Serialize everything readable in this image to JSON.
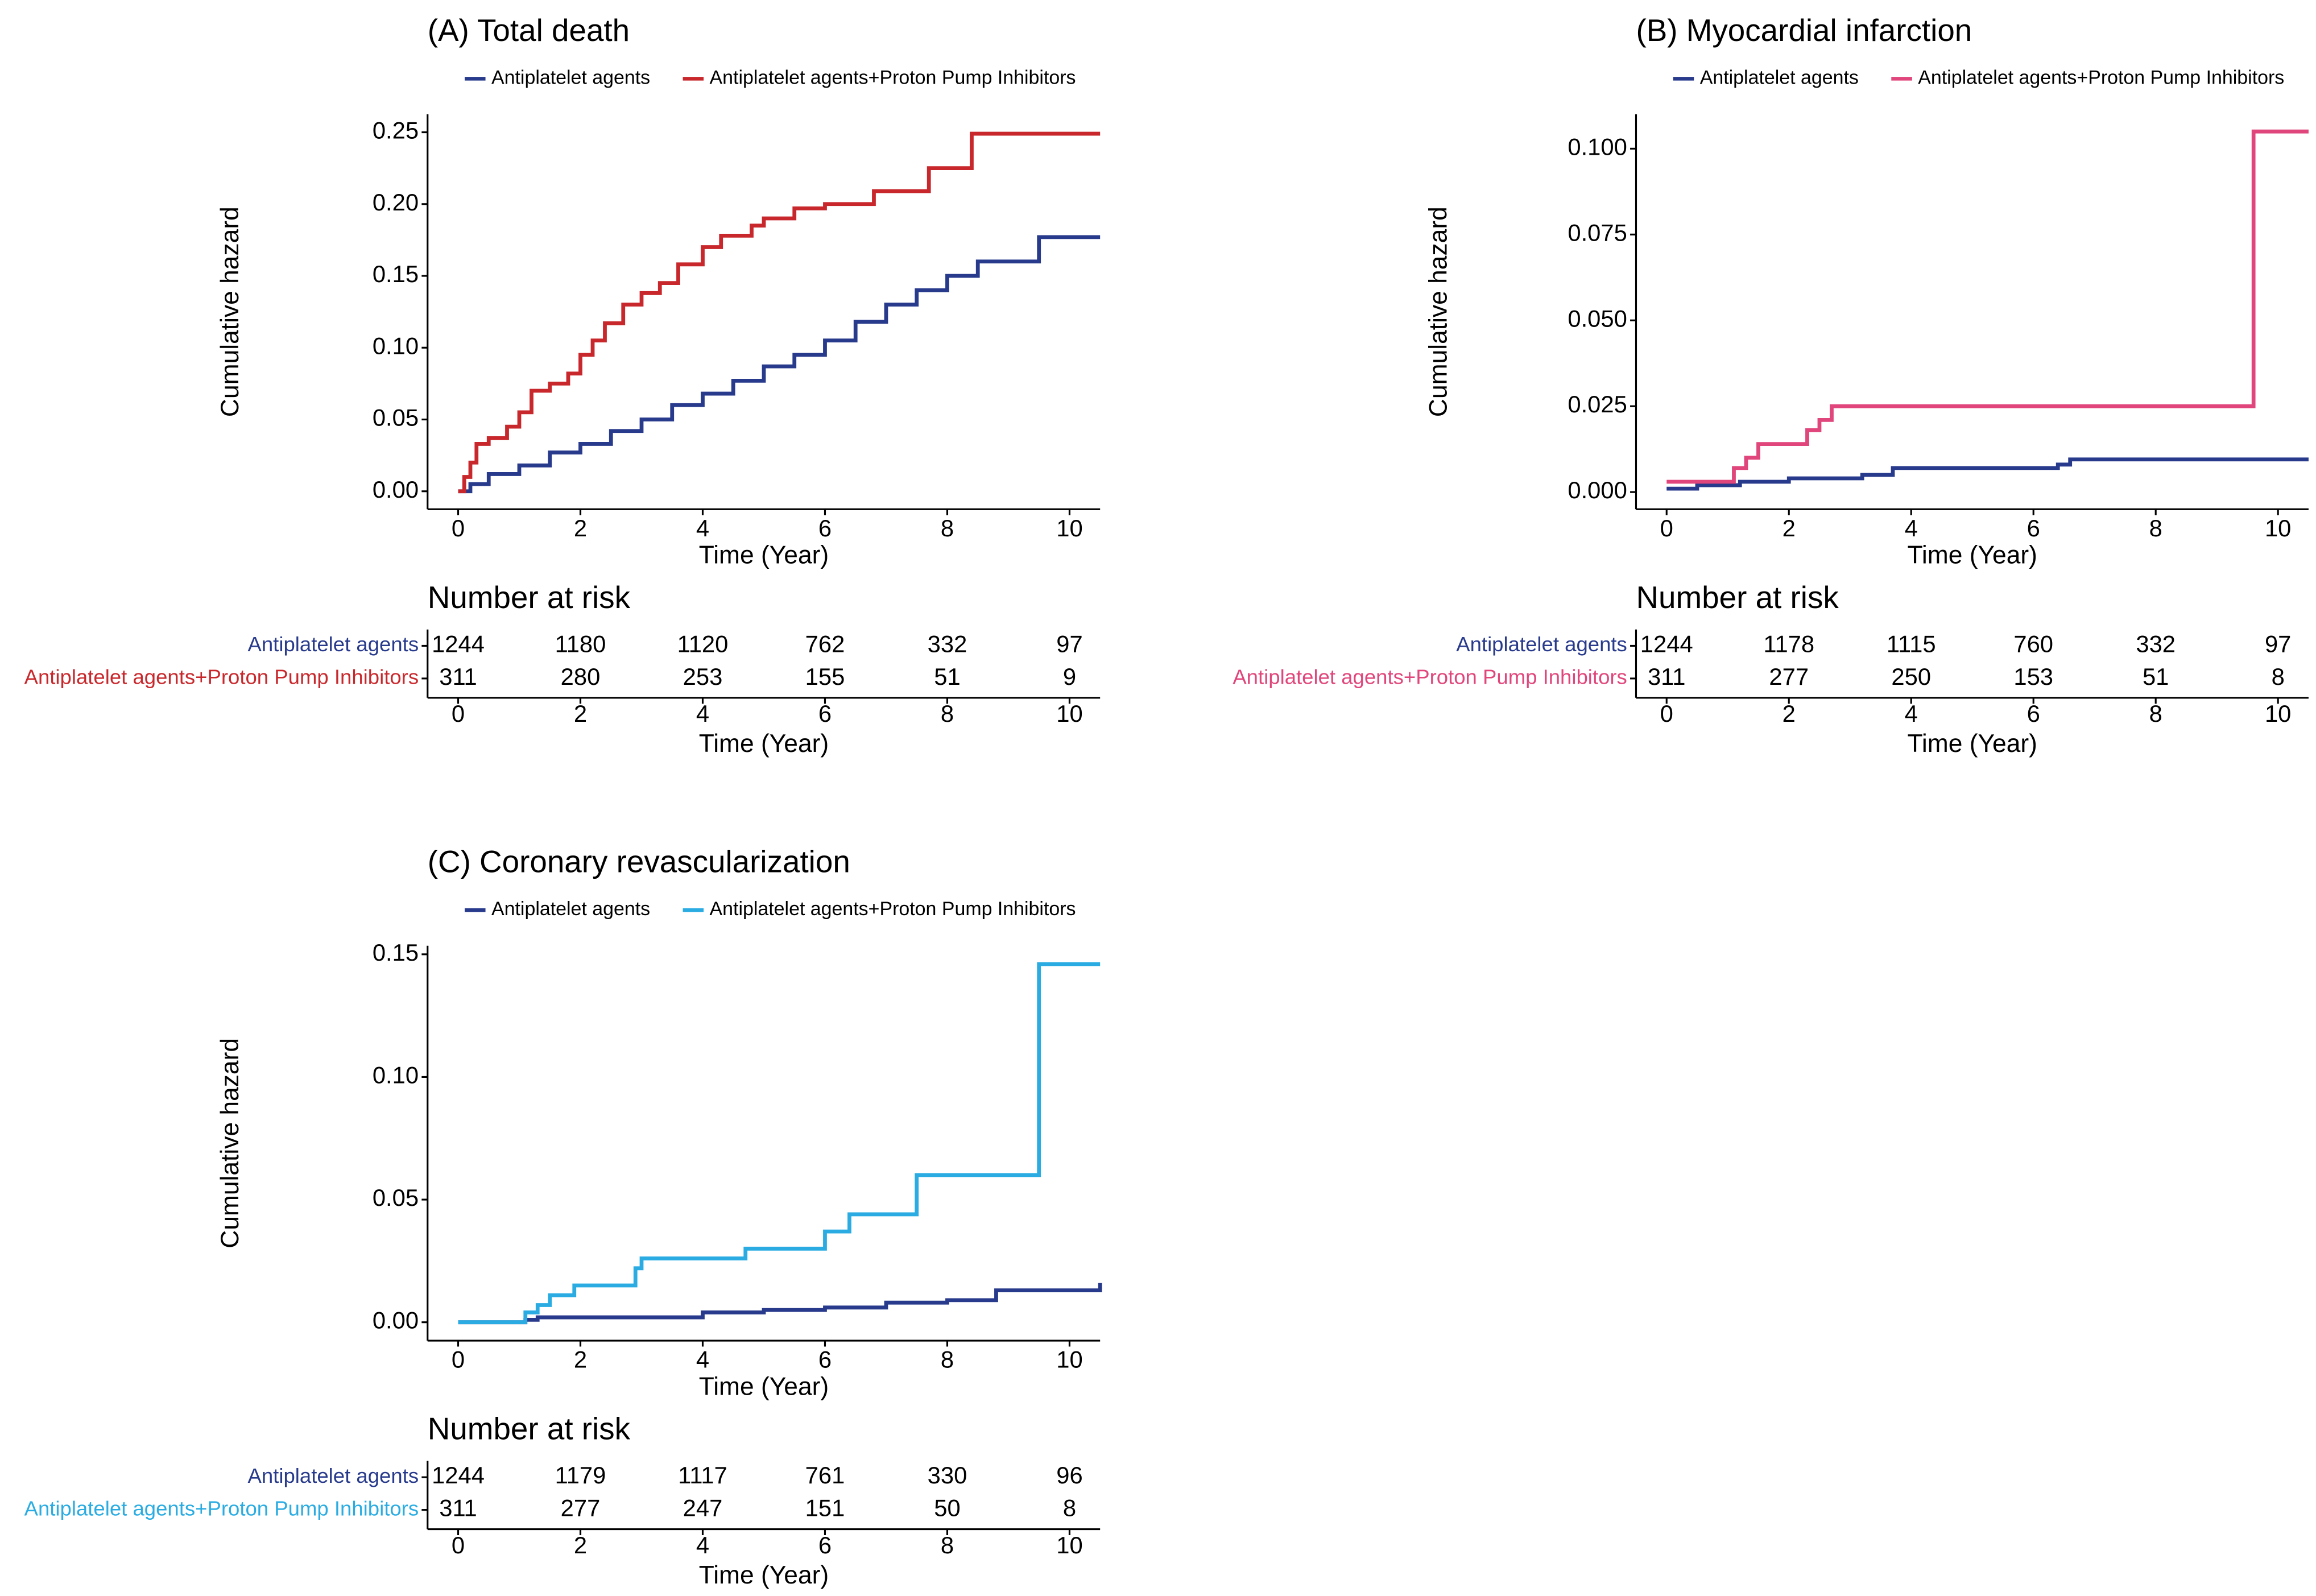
{
  "chart_data": [
    {
      "type": "step",
      "title": "(A) Total death",
      "xlabel": "Time (Year)",
      "ylabel": "Cumulative hazard",
      "xlim": [
        -0.5,
        10.5
      ],
      "xticks": [
        0,
        2,
        4,
        6,
        8,
        10
      ],
      "ylim": [
        -0.0125,
        0.2625
      ],
      "yticks": [
        {
          "value": 0,
          "label": "0.00"
        },
        {
          "value": 0.05,
          "label": "0.05"
        },
        {
          "value": 0.1,
          "label": "0.10"
        },
        {
          "value": 0.15,
          "label": "0.15"
        },
        {
          "value": 0.2,
          "label": "0.20"
        },
        {
          "value": 0.25,
          "label": "0.25"
        }
      ],
      "series": [
        {
          "name": "Antiplatelet agents",
          "color": "#283a8c",
          "x": [
            0,
            0.2,
            0.5,
            1,
            1.5,
            2,
            2.5,
            3,
            3.5,
            4,
            4.5,
            5,
            5.5,
            6,
            6.5,
            7,
            7.5,
            8,
            8.5,
            9.5,
            10.5
          ],
          "values": [
            0,
            0.005,
            0.012,
            0.018,
            0.027,
            0.033,
            0.042,
            0.05,
            0.06,
            0.068,
            0.077,
            0.087,
            0.095,
            0.105,
            0.118,
            0.13,
            0.14,
            0.15,
            0.16,
            0.177,
            0.177
          ]
        },
        {
          "name": "Antiplatelet agents+Proton Pump Inhibitors",
          "color": "#c8282c",
          "x": [
            0,
            0.1,
            0.2,
            0.3,
            0.5,
            0.8,
            1,
            1.2,
            1.5,
            1.8,
            2,
            2.2,
            2.4,
            2.7,
            3,
            3.3,
            3.6,
            4,
            4.3,
            4.8,
            5,
            5.5,
            6,
            6.8,
            7.7,
            8.4,
            10.5
          ],
          "values": [
            0,
            0.01,
            0.02,
            0.033,
            0.037,
            0.045,
            0.055,
            0.07,
            0.075,
            0.082,
            0.095,
            0.105,
            0.117,
            0.13,
            0.138,
            0.145,
            0.158,
            0.17,
            0.178,
            0.185,
            0.19,
            0.197,
            0.2,
            0.209,
            0.225,
            0.249,
            0.249
          ]
        }
      ],
      "risk_table": {
        "title": "Number at risk",
        "rows": [
          [
            1244,
            1180,
            1120,
            762,
            332,
            97
          ],
          [
            311,
            280,
            253,
            155,
            51,
            9
          ]
        ]
      }
    },
    {
      "type": "step",
      "title": "(B) Myocardial infarction",
      "xlabel": "Time (Year)",
      "ylabel": "Cumulative hazard",
      "xlim": [
        -0.5,
        10.5
      ],
      "xticks": [
        0,
        2,
        4,
        6,
        8,
        10
      ],
      "ylim": [
        -0.005,
        0.11
      ],
      "yticks": [
        {
          "value": 0,
          "label": "0.000"
        },
        {
          "value": 0.025,
          "label": "0.025"
        },
        {
          "value": 0.05,
          "label": "0.050"
        },
        {
          "value": 0.075,
          "label": "0.075"
        },
        {
          "value": 0.1,
          "label": "0.100"
        }
      ],
      "series": [
        {
          "name": "Antiplatelet agents",
          "color": "#283a8c",
          "x": [
            0,
            0.5,
            1.2,
            2,
            3.2,
            3.7,
            6.4,
            6.6,
            10.5
          ],
          "values": [
            0.001,
            0.002,
            0.003,
            0.004,
            0.005,
            0.007,
            0.008,
            0.0095,
            0.0095
          ]
        },
        {
          "name": "Antiplatelet agents+Proton Pump Inhibitors",
          "color": "#e0457b",
          "x": [
            0,
            1.1,
            1.3,
            1.5,
            2.3,
            2.5,
            2.7,
            9.6,
            10.5
          ],
          "values": [
            0.003,
            0.007,
            0.01,
            0.014,
            0.018,
            0.021,
            0.025,
            0.105,
            0.105
          ]
        }
      ],
      "risk_table": {
        "title": "Number at risk",
        "rows": [
          [
            1244,
            1178,
            1115,
            760,
            332,
            97
          ],
          [
            311,
            277,
            250,
            153,
            51,
            8
          ]
        ]
      }
    },
    {
      "type": "step",
      "title": "(C) Coronary revascularization",
      "xlabel": "Time (Year)",
      "ylabel": "Cumulative hazard",
      "xlim": [
        -0.5,
        10.5
      ],
      "xticks": [
        0,
        2,
        4,
        6,
        8,
        10
      ],
      "ylim": [
        -0.0075,
        0.1535
      ],
      "yticks": [
        {
          "value": 0,
          "label": "0.00"
        },
        {
          "value": 0.05,
          "label": "0.05"
        },
        {
          "value": 0.1,
          "label": "0.10"
        },
        {
          "value": 0.15,
          "label": "0.15"
        }
      ],
      "series": [
        {
          "name": "Antiplatelet agents",
          "color": "#283a8c",
          "x": [
            0,
            1.1,
            1.3,
            3.5,
            4,
            5,
            6,
            7,
            8,
            8.8,
            10.5
          ],
          "values": [
            0,
            0.001,
            0.002,
            0.002,
            0.004,
            0.005,
            0.006,
            0.008,
            0.009,
            0.013,
            0.016
          ]
        },
        {
          "name": "Antiplatelet agents+Proton Pump Inhibitors",
          "color": "#2aace2",
          "x": [
            0,
            1.1,
            1.3,
            1.5,
            1.9,
            2.9,
            3,
            4.7,
            6,
            6.4,
            7.5,
            9.5,
            10.5
          ],
          "values": [
            0,
            0.004,
            0.007,
            0.011,
            0.015,
            0.022,
            0.026,
            0.03,
            0.037,
            0.044,
            0.06,
            0.146,
            0.146
          ]
        }
      ],
      "risk_table": {
        "title": "Number at risk",
        "rows": [
          [
            1244,
            1179,
            1117,
            761,
            330,
            96
          ],
          [
            311,
            277,
            247,
            151,
            50,
            8
          ]
        ]
      }
    }
  ]
}
